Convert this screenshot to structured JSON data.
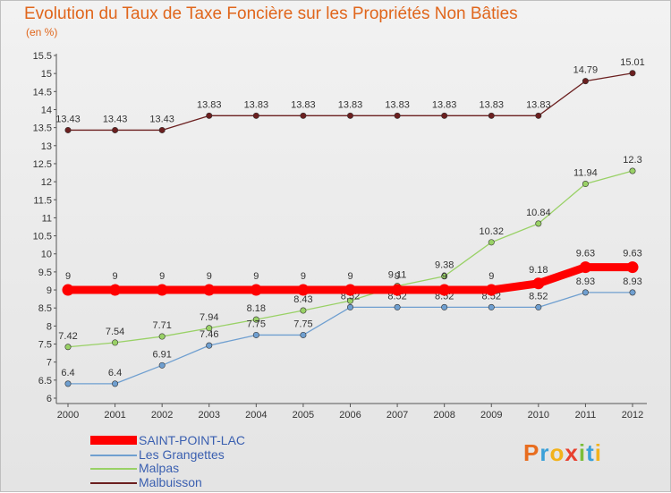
{
  "chart_data": {
    "type": "line",
    "title": "Evolution du Taux de Taxe Foncière sur les Propriétés Non Bâties",
    "ylabel": "(en %)",
    "xlabel": "",
    "ylim": [
      6,
      15.5
    ],
    "yticks": [
      "6",
      "6.5",
      "7",
      "7.5",
      "8",
      "8.5",
      "9",
      "9.5",
      "10",
      "10.5",
      "11",
      "11.5",
      "12",
      "12.5",
      "13",
      "13.5",
      "14",
      "14.5",
      "15",
      "15.5"
    ],
    "categories": [
      "2000",
      "2001",
      "2002",
      "2003",
      "2004",
      "2005",
      "2006",
      "2007",
      "2008",
      "2009",
      "2010",
      "2011",
      "2012"
    ],
    "series": [
      {
        "name": "Malbuisson",
        "color": "#6b1f1f",
        "values": [
          13.43,
          13.43,
          13.43,
          13.83,
          13.83,
          13.83,
          13.83,
          13.83,
          13.83,
          13.83,
          13.83,
          14.79,
          15.01
        ],
        "labels": [
          "13.43",
          "13.43",
          "13.43",
          "13.83",
          "13.83",
          "13.83",
          "13.83",
          "13.83",
          "13.83",
          "13.83",
          "13.83",
          "14.79",
          "15.01"
        ]
      },
      {
        "name": "Malpas",
        "color": "#99d166",
        "values": [
          7.42,
          7.54,
          7.71,
          7.94,
          8.18,
          8.43,
          8.7,
          9.11,
          9.38,
          10.32,
          10.84,
          11.94,
          12.3
        ],
        "labels": [
          "7.42",
          "7.54",
          "7.71",
          "7.94",
          "8.18",
          "8.43",
          "8.7",
          "9.11",
          "9.38",
          "10.32",
          "10.84",
          "11.94",
          "12.3"
        ]
      },
      {
        "name": "Les Grangettes",
        "color": "#6f9fd0",
        "values": [
          6.4,
          6.4,
          6.91,
          7.46,
          7.75,
          7.75,
          8.52,
          8.52,
          8.52,
          8.52,
          8.52,
          8.93,
          8.93
        ],
        "labels": [
          "6.4",
          "6.4",
          "6.91",
          "7.46",
          "7.75",
          "7.75",
          "8.52",
          "8.52",
          "8.52",
          "8.52",
          "8.52",
          "8.93",
          "8.93"
        ]
      },
      {
        "name": "SAINT-POINT-LAC",
        "color": "#ff0000",
        "values": [
          9,
          9,
          9,
          9,
          9,
          9,
          9,
          9,
          9,
          9,
          9.18,
          9.63,
          9.63
        ],
        "labels": [
          "9",
          "9",
          "9",
          "9",
          "9",
          "9",
          "9",
          "9",
          "9",
          "9",
          "9.18",
          "9.63",
          "9.63"
        ]
      }
    ],
    "legend": [
      "SAINT-POINT-LAC",
      "Les Grangettes",
      "Malpas",
      "Malbuisson"
    ],
    "legend_position": "bottom-left",
    "grid": false
  },
  "logo": {
    "text": "Proxiti",
    "letters": [
      "P",
      "r",
      "o",
      "x",
      "i",
      "t",
      "i"
    ],
    "colors": [
      "#e86d1f",
      "#3aa0d8",
      "#f2b21b",
      "#e8412f",
      "#7bbd3a",
      "#3aa0d8",
      "#f2b21b"
    ]
  }
}
